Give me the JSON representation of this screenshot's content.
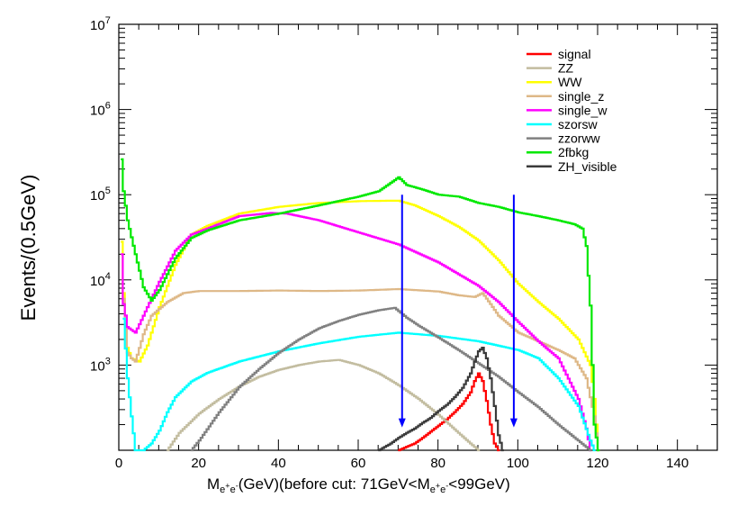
{
  "chart_data": {
    "type": "line",
    "xlabel": {
      "parts": [
        "M",
        "e",
        "+",
        "e",
        "-",
        "(GeV)(before cut: 71GeV<M",
        "e",
        "+",
        "e",
        "-",
        "<99GeV)"
      ]
    },
    "ylabel": "Events/(0.5GeV)",
    "xlim": [
      0,
      150
    ],
    "ylim": [
      100,
      10000000
    ],
    "yscale": "log",
    "grid": false,
    "legend_position": "top-right",
    "x_ticks": [
      "0",
      "20",
      "40",
      "60",
      "80",
      "100",
      "120",
      "140"
    ],
    "y_ticks": [
      {
        "base": "10",
        "exp": "3"
      },
      {
        "base": "10",
        "exp": "4"
      },
      {
        "base": "10",
        "exp": "5"
      },
      {
        "base": "10",
        "exp": "6"
      },
      {
        "base": "10",
        "exp": "7"
      }
    ],
    "cut_arrows": [
      {
        "x": 71,
        "y_top": 100000,
        "y_bottom": 190,
        "color": "#0000ff"
      },
      {
        "x": 99,
        "y_top": 100000,
        "y_bottom": 190,
        "color": "#0000ff"
      }
    ],
    "series": [
      {
        "name": "signal",
        "color": "#ff0000",
        "points": [
          [
            70,
            100
          ],
          [
            72,
            110
          ],
          [
            74,
            120
          ],
          [
            76,
            140
          ],
          [
            78,
            165
          ],
          [
            80,
            195
          ],
          [
            82,
            230
          ],
          [
            84,
            280
          ],
          [
            86,
            350
          ],
          [
            88,
            480
          ],
          [
            89,
            650
          ],
          [
            90,
            800
          ],
          [
            91,
            650
          ],
          [
            92,
            380
          ],
          [
            93,
            200
          ],
          [
            94,
            120
          ],
          [
            95,
            100
          ]
        ]
      },
      {
        "name": "ZZ",
        "color": "#c2bc9f",
        "points": [
          [
            12,
            100
          ],
          [
            15,
            160
          ],
          [
            20,
            270
          ],
          [
            25,
            400
          ],
          [
            30,
            560
          ],
          [
            35,
            730
          ],
          [
            40,
            880
          ],
          [
            45,
            1000
          ],
          [
            50,
            1100
          ],
          [
            55,
            1150
          ],
          [
            60,
            1000
          ],
          [
            65,
            800
          ],
          [
            70,
            580
          ],
          [
            75,
            400
          ],
          [
            80,
            260
          ],
          [
            85,
            160
          ],
          [
            88,
            120
          ],
          [
            90,
            100
          ]
        ]
      },
      {
        "name": "WW",
        "color": "#ffff00",
        "points": [
          [
            0.5,
            28000
          ],
          [
            1,
            7000
          ],
          [
            2,
            1600
          ],
          [
            3,
            1200
          ],
          [
            5,
            1100
          ],
          [
            7,
            1700
          ],
          [
            10,
            4800
          ],
          [
            14,
            15000
          ],
          [
            18,
            34000
          ],
          [
            22,
            43000
          ],
          [
            30,
            60000
          ],
          [
            40,
            72000
          ],
          [
            50,
            80000
          ],
          [
            60,
            84000
          ],
          [
            68,
            85000
          ],
          [
            70,
            85000
          ],
          [
            74,
            75000
          ],
          [
            80,
            56000
          ],
          [
            85,
            42000
          ],
          [
            90,
            29000
          ],
          [
            95,
            17000
          ],
          [
            100,
            9000
          ],
          [
            105,
            5500
          ],
          [
            110,
            3500
          ],
          [
            115,
            2000
          ],
          [
            118,
            1000
          ],
          [
            119,
            400
          ],
          [
            120,
            100
          ]
        ]
      },
      {
        "name": "single_z",
        "color": "#deb887",
        "points": [
          [
            1,
            6000
          ],
          [
            2,
            1400
          ],
          [
            3,
            1200
          ],
          [
            4,
            1100
          ],
          [
            6,
            2300
          ],
          [
            8,
            3800
          ],
          [
            12,
            5500
          ],
          [
            16,
            7000
          ],
          [
            20,
            7400
          ],
          [
            30,
            7400
          ],
          [
            40,
            7500
          ],
          [
            50,
            7400
          ],
          [
            60,
            7500
          ],
          [
            70,
            7800
          ],
          [
            80,
            7300
          ],
          [
            85,
            6600
          ],
          [
            89,
            6300
          ],
          [
            91,
            7000
          ],
          [
            93,
            5200
          ],
          [
            95,
            3800
          ],
          [
            100,
            2400
          ],
          [
            105,
            1900
          ],
          [
            110,
            1500
          ],
          [
            114,
            1200
          ],
          [
            117,
            700
          ],
          [
            119,
            250
          ],
          [
            120,
            100
          ]
        ]
      },
      {
        "name": "single_w",
        "color": "#ff00ff",
        "points": [
          [
            0.5,
            20000
          ],
          [
            1,
            5200
          ],
          [
            2,
            2800
          ],
          [
            4,
            2400
          ],
          [
            6,
            3800
          ],
          [
            10,
            9500
          ],
          [
            14,
            22000
          ],
          [
            18,
            34000
          ],
          [
            22,
            40000
          ],
          [
            30,
            56000
          ],
          [
            38,
            61000
          ],
          [
            42,
            60000
          ],
          [
            50,
            50000
          ],
          [
            60,
            36000
          ],
          [
            70,
            26000
          ],
          [
            80,
            16000
          ],
          [
            90,
            8500
          ],
          [
            95,
            5500
          ],
          [
            100,
            3200
          ],
          [
            105,
            1900
          ],
          [
            110,
            1200
          ],
          [
            115,
            400
          ],
          [
            117,
            180
          ],
          [
            118,
            100
          ]
        ]
      },
      {
        "name": "szorsw",
        "color": "#00ffff",
        "points": [
          [
            1,
            3500
          ],
          [
            2,
            700
          ],
          [
            3,
            250
          ],
          [
            4,
            100
          ],
          [
            6,
            100
          ],
          [
            8,
            120
          ],
          [
            10,
            170
          ],
          [
            12,
            280
          ],
          [
            14,
            420
          ],
          [
            18,
            640
          ],
          [
            22,
            810
          ],
          [
            30,
            1100
          ],
          [
            40,
            1450
          ],
          [
            50,
            1800
          ],
          [
            60,
            2150
          ],
          [
            68,
            2350
          ],
          [
            70,
            2400
          ],
          [
            80,
            2200
          ],
          [
            90,
            1900
          ],
          [
            100,
            1500
          ],
          [
            105,
            1200
          ],
          [
            110,
            700
          ],
          [
            115,
            330
          ],
          [
            118,
            130
          ],
          [
            119,
            100
          ]
        ]
      },
      {
        "name": "zzorww",
        "color": "#808080",
        "points": [
          [
            18,
            100
          ],
          [
            20,
            130
          ],
          [
            25,
            280
          ],
          [
            30,
            550
          ],
          [
            35,
            900
          ],
          [
            40,
            1400
          ],
          [
            45,
            2000
          ],
          [
            50,
            2700
          ],
          [
            55,
            3300
          ],
          [
            60,
            3900
          ],
          [
            65,
            4400
          ],
          [
            69,
            4700
          ],
          [
            72,
            3600
          ],
          [
            75,
            2900
          ],
          [
            80,
            2100
          ],
          [
            85,
            1500
          ],
          [
            90,
            1050
          ],
          [
            95,
            730
          ],
          [
            100,
            480
          ],
          [
            105,
            320
          ],
          [
            110,
            200
          ],
          [
            115,
            130
          ],
          [
            118,
            100
          ]
        ]
      },
      {
        "name": "2fbkg",
        "color": "#00e800",
        "points": [
          [
            0.5,
            260000
          ],
          [
            1,
            110000
          ],
          [
            2,
            50000
          ],
          [
            4,
            20000
          ],
          [
            6,
            8200
          ],
          [
            8,
            5700
          ],
          [
            10,
            7600
          ],
          [
            14,
            18000
          ],
          [
            18,
            31000
          ],
          [
            22,
            38000
          ],
          [
            30,
            50000
          ],
          [
            40,
            60000
          ],
          [
            50,
            75000
          ],
          [
            60,
            95000
          ],
          [
            65,
            110000
          ],
          [
            70,
            160000
          ],
          [
            72,
            130000
          ],
          [
            76,
            115000
          ],
          [
            80,
            100000
          ],
          [
            85,
            95000
          ],
          [
            90,
            80000
          ],
          [
            95,
            72000
          ],
          [
            100,
            62000
          ],
          [
            105,
            56000
          ],
          [
            110,
            50000
          ],
          [
            114,
            45000
          ],
          [
            116,
            40000
          ],
          [
            117,
            25000
          ],
          [
            118,
            5000
          ],
          [
            119,
            200
          ],
          [
            120,
            100
          ]
        ]
      },
      {
        "name": "ZH_visible",
        "color": "#3a3a3a",
        "points": [
          [
            65,
            100
          ],
          [
            68,
            120
          ],
          [
            70,
            140
          ],
          [
            72,
            160
          ],
          [
            74,
            180
          ],
          [
            76,
            210
          ],
          [
            78,
            240
          ],
          [
            80,
            290
          ],
          [
            82,
            340
          ],
          [
            84,
            420
          ],
          [
            86,
            540
          ],
          [
            88,
            800
          ],
          [
            89,
            1100
          ],
          [
            90,
            1450
          ],
          [
            91,
            1600
          ],
          [
            92,
            1200
          ],
          [
            93,
            700
          ],
          [
            94,
            330
          ],
          [
            95,
            150
          ],
          [
            96,
            100
          ]
        ]
      }
    ]
  }
}
